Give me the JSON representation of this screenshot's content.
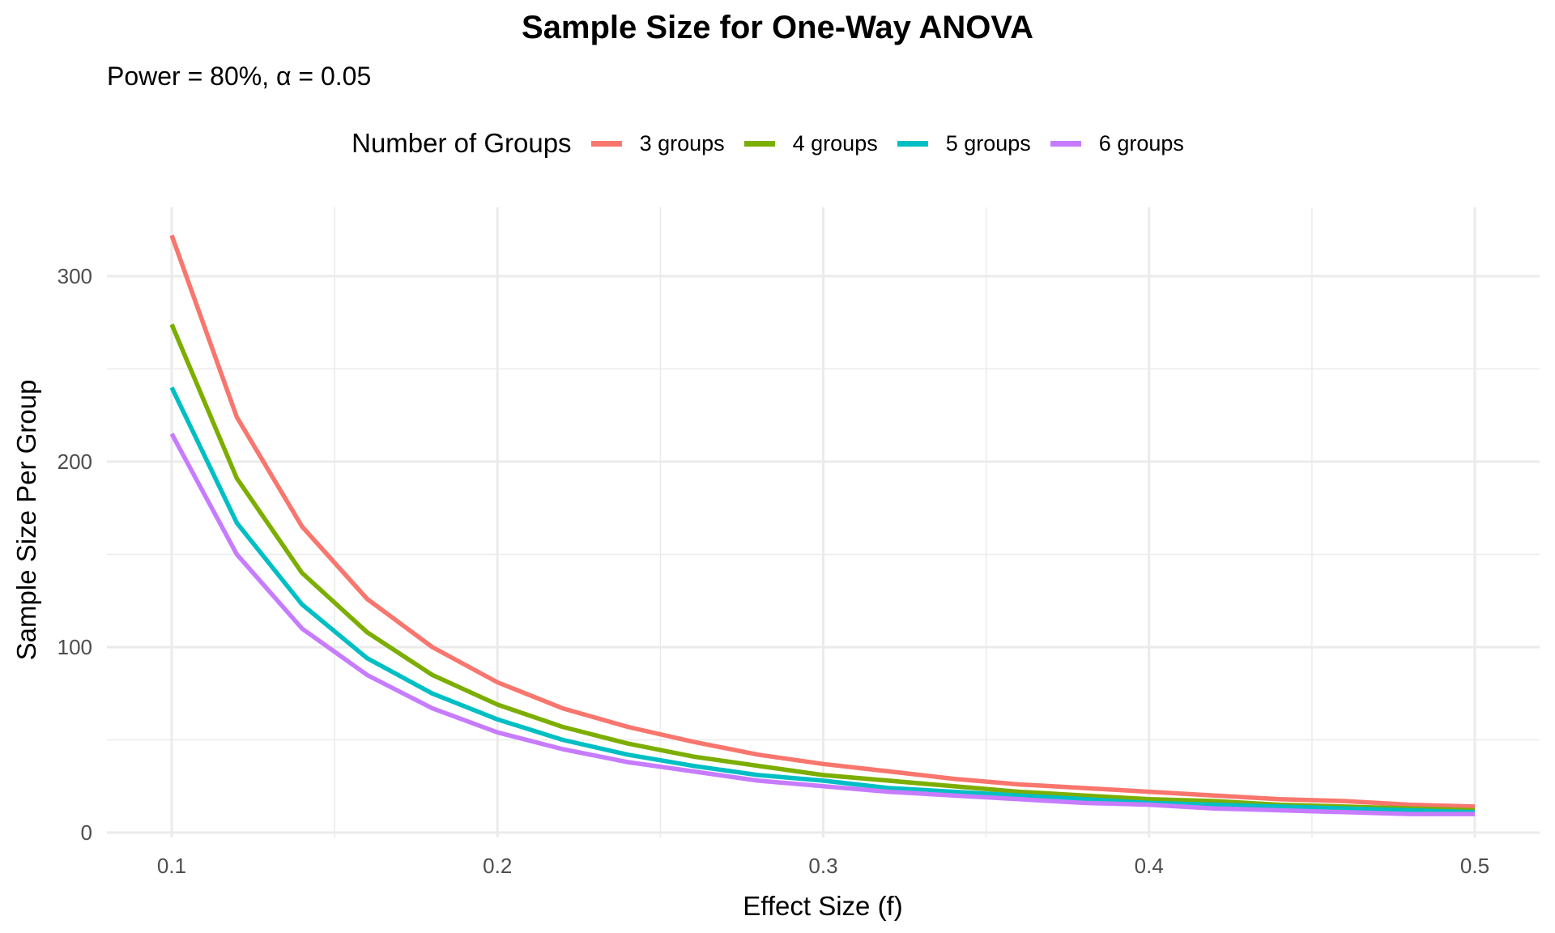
{
  "chart_data": {
    "type": "line",
    "title": "Sample Size for One-Way ANOVA",
    "subtitle": "Power = 80%, α = 0.05",
    "xlabel": "Effect Size (f)",
    "ylabel": "Sample Size Per Group",
    "xlim": [
      0.08,
      0.52
    ],
    "ylim": [
      0,
      340
    ],
    "x_ticks": [
      0.1,
      0.2,
      0.3,
      0.4,
      0.5
    ],
    "x_tick_labels": [
      "0.1",
      "0.2",
      "0.3",
      "0.4",
      "0.5"
    ],
    "y_ticks": [
      0,
      100,
      200,
      300
    ],
    "y_tick_labels": [
      "0",
      "100",
      "200",
      "300"
    ],
    "grid": true,
    "legend": {
      "title": "Number of Groups",
      "position": "top"
    },
    "x": [
      0.1,
      0.12,
      0.14,
      0.16,
      0.18,
      0.2,
      0.22,
      0.24,
      0.26,
      0.28,
      0.3,
      0.32,
      0.34,
      0.36,
      0.38,
      0.4,
      0.42,
      0.44,
      0.46,
      0.48,
      0.5
    ],
    "series": [
      {
        "name": "3 groups",
        "color": "#F8766D",
        "values": [
          322,
          224,
          165,
          126,
          100,
          81,
          67,
          57,
          49,
          42,
          37,
          33,
          29,
          26,
          24,
          22,
          20,
          18,
          17,
          15,
          14
        ]
      },
      {
        "name": "4 groups",
        "color": "#7CAE00",
        "values": [
          274,
          191,
          140,
          108,
          85,
          69,
          57,
          48,
          41,
          36,
          31,
          28,
          25,
          22,
          20,
          18,
          17,
          15,
          14,
          13,
          12
        ]
      },
      {
        "name": "5 groups",
        "color": "#00BFC4",
        "values": [
          240,
          167,
          123,
          94,
          75,
          61,
          50,
          42,
          36,
          31,
          28,
          24,
          22,
          20,
          18,
          16,
          15,
          14,
          13,
          12,
          11
        ]
      },
      {
        "name": "6 groups",
        "color": "#C77CFF",
        "values": [
          215,
          150,
          110,
          85,
          67,
          54,
          45,
          38,
          33,
          28,
          25,
          22,
          20,
          18,
          16,
          15,
          13,
          12,
          11,
          10,
          10
        ]
      }
    ]
  }
}
